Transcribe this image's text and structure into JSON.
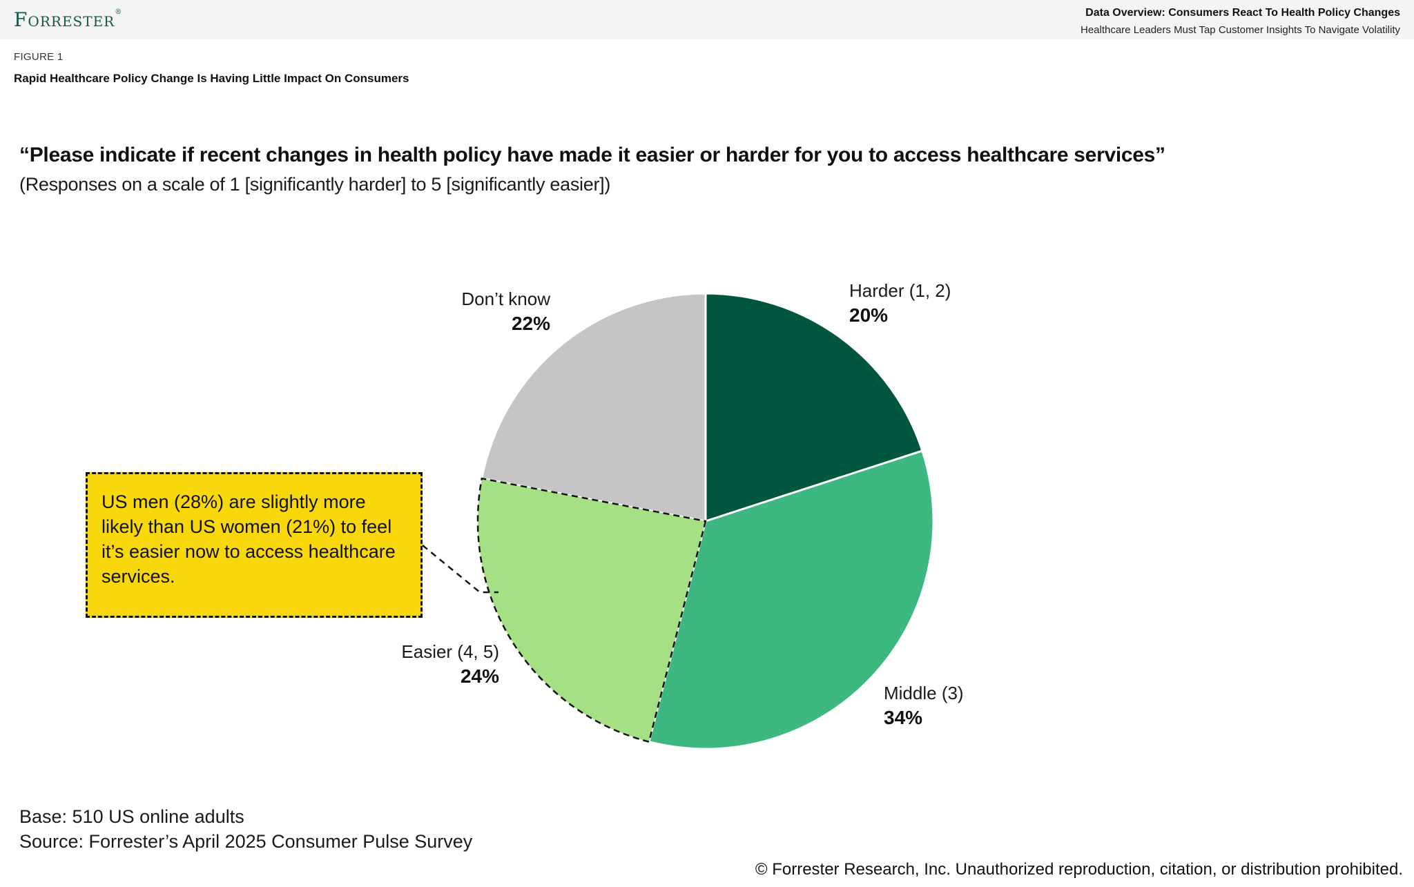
{
  "header": {
    "logo": "Forrester",
    "logo_mark": "®",
    "doc_title": "Data Overview: Consumers React To Health Policy Changes",
    "doc_subtitle": "Healthcare Leaders Must Tap Customer Insights To Navigate Volatility"
  },
  "figure": {
    "label": "FIGURE 1",
    "title": "Rapid Healthcare Policy Change Is Having Little Impact On Consumers"
  },
  "question": {
    "quote": "“Please indicate if recent changes in health policy have made it easier or harder for you to access healthcare services”",
    "scale_note": "(Responses on a scale of 1 [significantly harder] to 5 [significantly easier])"
  },
  "chart_data": {
    "type": "pie",
    "title": "Responses to health policy access question",
    "start_angle_deg": -90,
    "direction": "clockwise",
    "slices": [
      {
        "label": "Harder (1, 2)",
        "pct_label": "20%",
        "value": 20,
        "color": "#02563E",
        "dashed_outline": false
      },
      {
        "label": "Middle (3)",
        "pct_label": "34%",
        "value": 34,
        "color": "#3DB880",
        "dashed_outline": false
      },
      {
        "label": "Easier (4, 5)",
        "pct_label": "24%",
        "value": 24,
        "color": "#A5E184",
        "dashed_outline": true
      },
      {
        "label": "Don’t know",
        "pct_label": "22%",
        "value": 22,
        "color": "#C5C5C6",
        "dashed_outline": false
      }
    ],
    "separator_color": "#FFFFFF",
    "legend_position": "outside-labels"
  },
  "callout": {
    "text": "US men (28%) are slightly more likely than US women (21%) to feel it’s easier now to access healthcare services.",
    "bg_color": "#F8D70B"
  },
  "footnotes": {
    "base": "Base: 510 US online adults",
    "source": "Source: Forrester’s April 2025 Consumer Pulse Survey"
  },
  "copyright": "© Forrester Research, Inc. Unauthorized reproduction, citation, or distribution prohibited."
}
